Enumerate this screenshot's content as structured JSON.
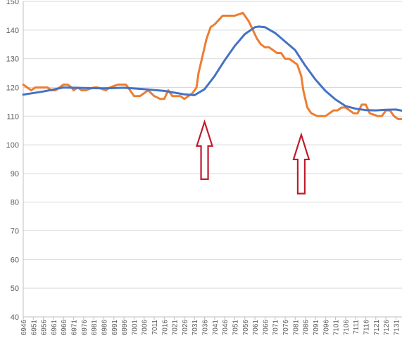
{
  "colors": {
    "background": "#ffffff",
    "gridline": "#d9d9d9",
    "axis": "#bfbfbf",
    "tick_text": "#595959",
    "arrow_stroke": "#c0192b",
    "arrow_fill": "#ffffff"
  },
  "chart_data": {
    "type": "line",
    "title": "",
    "xlabel": "",
    "ylabel": "",
    "xlim": [
      6946,
      7134
    ],
    "ylim": [
      40,
      150
    ],
    "legend": "none",
    "grid": "horizontal",
    "y_ticks": [
      "40",
      "50",
      "60",
      "70",
      "80",
      "90",
      "100",
      "110",
      "120",
      "130",
      "140",
      "150"
    ],
    "x_ticks": [
      "6946",
      "6951",
      "6956",
      "6961",
      "6966",
      "6971",
      "6976",
      "6981",
      "6986",
      "6991",
      "6996",
      "7001",
      "7006",
      "7011",
      "7016",
      "7021",
      "7026",
      "7031",
      "7036",
      "7041",
      "7046",
      "7051",
      "7056",
      "7061",
      "7066",
      "7071",
      "7076",
      "7081",
      "7086",
      "7091",
      "7096",
      "7101",
      "7106",
      "7111",
      "7116",
      "7121",
      "7126",
      "7131"
    ],
    "series": [
      {
        "color": "#ed7d31",
        "x": [
          6946,
          6948,
          6950,
          6952,
          6958,
          6960,
          6962,
          6964,
          6966,
          6968,
          6970,
          6971,
          6973,
          6975,
          6977,
          6981,
          6983,
          6987,
          6989,
          6993,
          6995,
          6997,
          6999,
          7001,
          7004,
          7008,
          7011,
          7014,
          7016,
          7018,
          7020,
          7022,
          7024,
          7026,
          7028,
          7030,
          7032,
          7033,
          7035,
          7037,
          7039,
          7041,
          7045,
          7047,
          7051,
          7055,
          7056,
          7058,
          7060,
          7062,
          7064,
          7066,
          7068,
          7070,
          7072,
          7074,
          7076,
          7078,
          7082,
          7084,
          7085,
          7087,
          7089,
          7092,
          7094,
          7096,
          7098,
          7100,
          7102,
          7104,
          7106,
          7108,
          7110,
          7112,
          7114,
          7116,
          7118,
          7122,
          7124,
          7126,
          7128,
          7130,
          7132,
          7134
        ],
        "y": [
          121,
          120,
          119,
          120,
          120,
          119,
          119,
          120,
          121,
          121,
          120,
          119,
          120,
          119,
          119,
          120,
          120,
          119,
          120,
          121,
          121,
          121,
          119,
          117,
          117,
          119,
          117,
          116,
          116,
          119,
          117,
          117,
          117,
          116,
          117,
          118,
          120,
          125,
          131,
          137,
          141,
          142,
          145,
          145,
          145,
          146,
          145,
          143,
          140,
          137,
          135,
          134,
          134,
          133,
          132,
          132,
          130,
          130,
          128,
          124,
          119,
          113,
          111,
          110,
          110,
          110,
          111,
          112,
          112,
          113,
          113,
          112,
          111,
          111,
          114,
          114,
          111,
          110,
          110,
          112,
          112,
          110,
          109,
          109
        ]
      },
      {
        "color": "#4472c4",
        "x": [
          6946,
          6956,
          6966,
          6976,
          6986,
          6996,
          7006,
          7016,
          7026,
          7031,
          7036,
          7041,
          7046,
          7051,
          7056,
          7061,
          7063,
          7066,
          7071,
          7076,
          7081,
          7086,
          7091,
          7096,
          7101,
          7106,
          7111,
          7116,
          7121,
          7126,
          7131,
          7134
        ],
        "y": [
          117.5,
          118.6,
          120,
          119.8,
          119.7,
          119.9,
          119.4,
          118.8,
          117.6,
          117.3,
          119.4,
          124,
          129.5,
          134.5,
          138.6,
          141,
          141.2,
          141,
          139,
          136,
          133,
          127.6,
          122.8,
          118.8,
          115.8,
          113.5,
          112.6,
          112.1,
          112,
          112.2,
          112.3,
          111.9
        ]
      }
    ],
    "annotations": [
      {
        "type": "arrow-up",
        "x": 7036,
        "y_bottom": 88,
        "y_top": 108
      },
      {
        "type": "arrow-up",
        "x": 7084,
        "y_bottom": 83,
        "y_top": 103.5
      }
    ]
  }
}
